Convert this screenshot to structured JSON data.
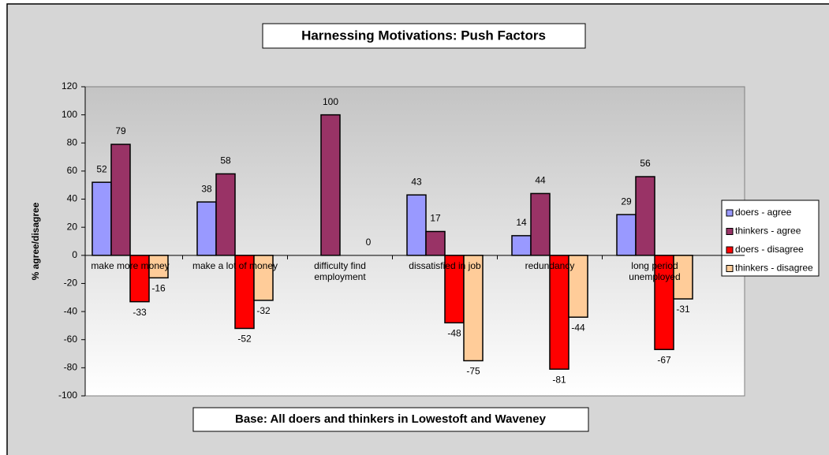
{
  "chart_data": {
    "type": "bar",
    "title": "Harnessing Motivations: Push Factors",
    "subtitle": "Base: All doers and thinkers in Lowestoft and Waveney",
    "y_label": "% agree/disagree",
    "categories": [
      "make more money",
      "make a lot of money",
      "difficulty find employment",
      "dissatisfied in job",
      "redundancy",
      "long period unemployed"
    ],
    "series": [
      {
        "name": "doers - agree",
        "color": "#9999ff",
        "values": [
          52,
          38,
          null,
          43,
          14,
          29
        ]
      },
      {
        "name": "thinkers - agree",
        "color": "#993366",
        "values": [
          79,
          58,
          100,
          17,
          44,
          56
        ]
      },
      {
        "name": "doers - disagree",
        "color": "#ff0000",
        "values": [
          -33,
          -52,
          null,
          -48,
          -81,
          -67
        ]
      },
      {
        "name": "thinkers - disagree",
        "color": "#ffcc99",
        "values": [
          -16,
          -32,
          0,
          -75,
          -44,
          -31
        ]
      }
    ],
    "ylim": [
      -100,
      120
    ],
    "yticks": [
      -100,
      -80,
      -60,
      -40,
      -20,
      0,
      20,
      40,
      60,
      80,
      100,
      120
    ],
    "grid": false,
    "legend_position": "right"
  }
}
